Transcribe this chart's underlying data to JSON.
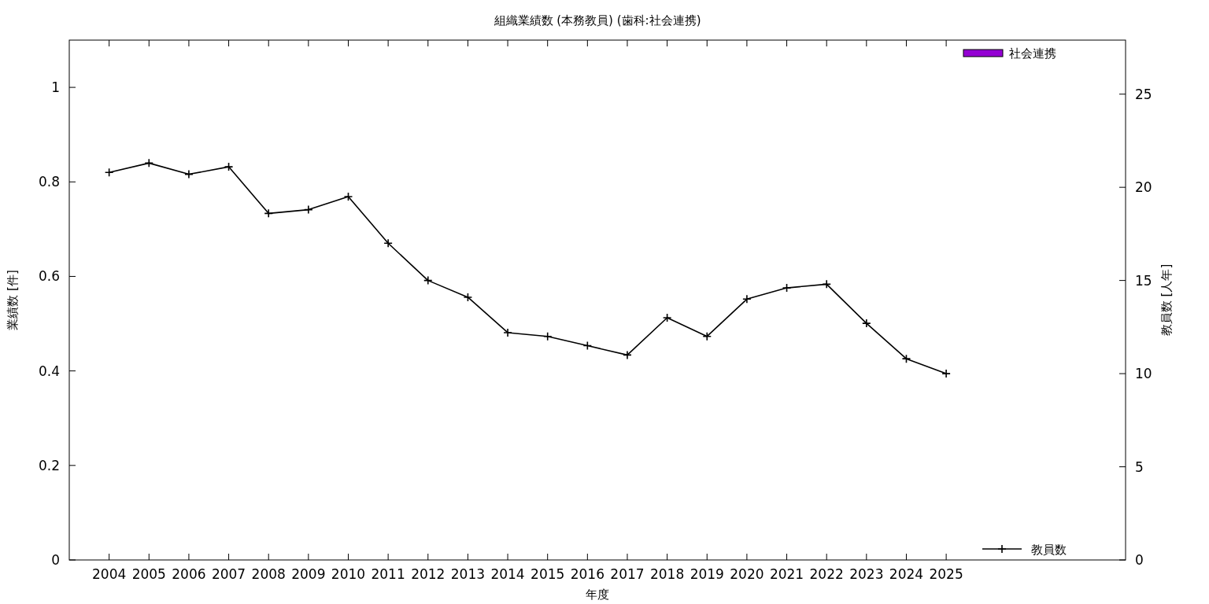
{
  "chart_data": {
    "type": "bar",
    "title": "組織業績数 (本務教員) (歯科:社会連携)",
    "xlabel": "年度",
    "ylabel": "業績数 [件]",
    "y2label": "教員数 [人年]",
    "x": [
      2004,
      2005,
      2006,
      2007,
      2008,
      2009,
      2010,
      2011,
      2012,
      2013,
      2014,
      2015,
      2016,
      2017,
      2018,
      2019,
      2020,
      2021,
      2022,
      2023,
      2024,
      2025
    ],
    "xlim": [
      2003,
      2029.5
    ],
    "xticks": [
      2004,
      2005,
      2006,
      2007,
      2008,
      2009,
      2010,
      2011,
      2012,
      2013,
      2014,
      2015,
      2016,
      2017,
      2018,
      2019,
      2020,
      2021,
      2022,
      2023,
      2024,
      2025
    ],
    "ylim": [
      0,
      1.1
    ],
    "yticks": [
      0,
      0.2,
      0.4,
      0.6,
      0.8,
      1
    ],
    "y2lim": [
      0,
      27.9
    ],
    "y2ticks": [
      0,
      5,
      10,
      15,
      20,
      25
    ],
    "legend": "right",
    "grid": false,
    "series": [
      {
        "name": "社会連携",
        "color": "#9400d3",
        "values": [
          0,
          0,
          0,
          0,
          0,
          0,
          0,
          0,
          0,
          0,
          0,
          0,
          0,
          0,
          0,
          0,
          0,
          0,
          0,
          0,
          0,
          0
        ]
      },
      {
        "name": "教員数",
        "type": "line",
        "axis": "y2",
        "color": "#000000",
        "marker": "cross",
        "line_style": "solid",
        "values": [
          20.8,
          21.3,
          20.7,
          21.1,
          18.6,
          18.8,
          19.5,
          17.0,
          15.0,
          14.1,
          12.2,
          12.0,
          11.5,
          11.0,
          13.0,
          12.0,
          14.0,
          14.6,
          14.8,
          12.7,
          10.8,
          10.0
        ]
      }
    ]
  }
}
